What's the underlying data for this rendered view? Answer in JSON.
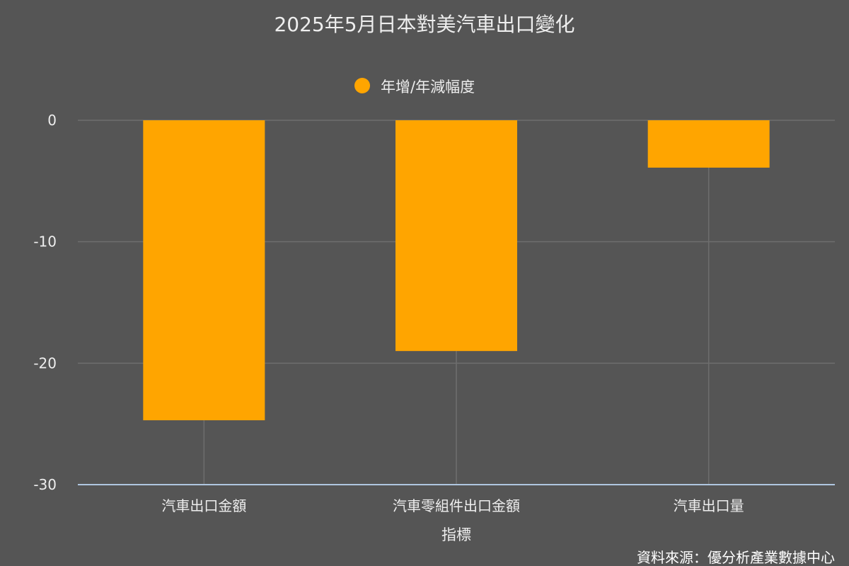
{
  "chart_data": {
    "type": "bar",
    "title": "2025年5月日本對美汽車出口變化",
    "categories": [
      "汽車出口金額",
      "汽車零組件出口金額",
      "汽車出口量"
    ],
    "series": [
      {
        "name": "年增/年減幅度",
        "values": [
          -24.7,
          -19.0,
          -3.9
        ],
        "color": "#FFA500"
      }
    ],
    "xlabel": "指標",
    "ylabel": "",
    "ylim": [
      -30,
      0
    ],
    "yticks": [
      0,
      -10,
      -20,
      -30
    ],
    "grid": true,
    "legend_position": "top-center"
  },
  "source": "資料來源：優分析產業數據中心",
  "colors": {
    "background": "#555555",
    "text": "#EEEEEE",
    "grid": "#6E6E6E",
    "axis_line": "#AFC6E0"
  }
}
